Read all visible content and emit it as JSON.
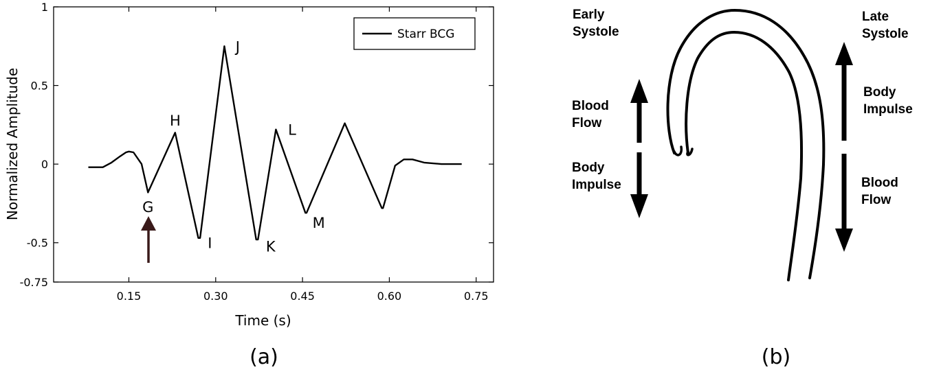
{
  "chart_data": {
    "type": "line",
    "xlabel": "Time (s)",
    "ylabel": "Normalized Amplitude",
    "xlim": [
      0.02,
      0.78
    ],
    "ylim": [
      -0.75,
      1
    ],
    "x_ticks": [
      "0.15",
      "0.30",
      "0.45",
      "0.60",
      "0.75"
    ],
    "x_tick_values": [
      0.15,
      0.3,
      0.45,
      0.6,
      0.75
    ],
    "y_ticks": [
      "1",
      "0.5",
      "0",
      "-0.5",
      "-0.75"
    ],
    "y_tick_values": [
      1,
      0.5,
      0,
      -0.5,
      -0.75
    ],
    "grid": false,
    "legend_position": "top-right",
    "series": [
      {
        "name": "Starr BCG",
        "x": [
          0.08,
          0.105,
          0.12,
          0.135,
          0.145,
          0.15,
          0.158,
          0.172,
          0.183,
          0.23,
          0.27,
          0.273,
          0.315,
          0.37,
          0.373,
          0.404,
          0.455,
          0.457,
          0.523,
          0.587,
          0.589,
          0.61,
          0.625,
          0.64,
          0.66,
          0.69,
          0.725
        ],
        "y": [
          -0.02,
          -0.02,
          0.01,
          0.05,
          0.075,
          0.08,
          0.075,
          0.0,
          -0.18,
          0.2,
          -0.47,
          -0.47,
          0.75,
          -0.48,
          -0.48,
          0.22,
          -0.31,
          -0.31,
          0.26,
          -0.28,
          -0.28,
          -0.01,
          0.03,
          0.03,
          0.01,
          0.0,
          0.0
        ]
      }
    ],
    "annotations": [
      {
        "text": "G",
        "x": 0.183,
        "y": -0.27
      },
      {
        "text": "H",
        "x": 0.23,
        "y": 0.28
      },
      {
        "text": "I",
        "x": 0.29,
        "y": -0.5
      },
      {
        "text": "J",
        "x": 0.338,
        "y": 0.75
      },
      {
        "text": "K",
        "x": 0.395,
        "y": -0.52
      },
      {
        "text": "L",
        "x": 0.432,
        "y": 0.22
      },
      {
        "text": "M",
        "x": 0.478,
        "y": -0.37
      }
    ],
    "arrow_color": "#3a1a1a"
  },
  "panel_a": {
    "caption": "(a)"
  },
  "panel_b": {
    "caption": "(b)",
    "early_label": [
      "Early",
      "Systole"
    ],
    "late_label": [
      "Late",
      "Systole"
    ],
    "left_up_label": [
      "Blood",
      "Flow"
    ],
    "left_down_label": [
      "Body",
      "Impulse"
    ],
    "right_up_label": [
      "Body",
      "Impulse"
    ],
    "right_down_label": [
      "Blood",
      "Flow"
    ]
  }
}
